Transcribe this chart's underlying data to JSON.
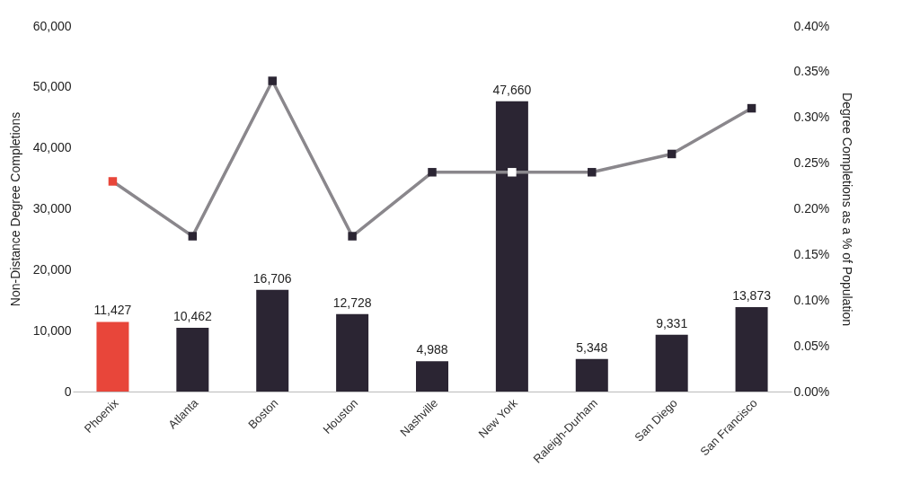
{
  "chart_data": {
    "type": "bar",
    "categories": [
      "Phoenix",
      "Atlanta",
      "Boston",
      "Houston",
      "Nashville",
      "New York",
      "Raleigh-Durham",
      "San Diego",
      "San Francisco"
    ],
    "series": [
      {
        "colors": [
          "#e8463a",
          "#2b2533",
          "#2b2533",
          "#2b2533",
          "#2b2533",
          "#2b2533",
          "#2b2533",
          "#2b2533",
          "#2b2533"
        ],
        "values": [
          11427,
          10462,
          16706,
          12728,
          4988,
          47660,
          5348,
          9331,
          13873
        ],
        "value_labels": [
          "11,427",
          "10,462",
          "16,706",
          "12,728",
          "4,988",
          "47,660",
          "5,348",
          "9,331",
          "13,873"
        ]
      },
      {
        "type": "line",
        "axis": "y2",
        "color": "#8a878c",
        "colors": [
          "#e8463a",
          "#2b2533",
          "#2b2533",
          "#2b2533",
          "#2b2533",
          "#ffffff",
          "#2b2533",
          "#2b2533",
          "#2b2533"
        ],
        "values": [
          0.23,
          0.17,
          0.34,
          0.17,
          0.24,
          0.24,
          0.24,
          0.26,
          0.31
        ]
      }
    ],
    "ylabel": "Non-Distance Degree Completions",
    "y2label": "Degree Completions as a % of Population",
    "ylim": [
      0,
      60000
    ],
    "yticks": [
      0,
      {
        "value": 10000,
        "label": "10,000"
      },
      {
        "value": 20000,
        "label": "20,000"
      },
      {
        "value": 30000,
        "label": "30,000"
      },
      {
        "value": 40000,
        "label": "40,000"
      },
      {
        "value": 50000,
        "label": "50,000"
      },
      {
        "value": 60000,
        "label": "60,000"
      }
    ],
    "y2lim": [
      0,
      0.4
    ],
    "y2ticks": [
      {
        "value": 0,
        "label": "0.00%"
      },
      {
        "value": 0.05,
        "label": "0.05%"
      },
      {
        "value": 0.1,
        "label": "0.10%"
      },
      {
        "value": 0.15,
        "label": "0.15%"
      },
      {
        "value": 0.2,
        "label": "0.20%"
      },
      {
        "value": 0.25,
        "label": "0.25%"
      },
      {
        "value": 0.3,
        "label": "0.30%"
      },
      {
        "value": 0.35,
        "label": "0.35%"
      },
      {
        "value": 0.4,
        "label": "0.40%"
      }
    ],
    "grid": false,
    "marker": "square",
    "line_style": "solid"
  }
}
